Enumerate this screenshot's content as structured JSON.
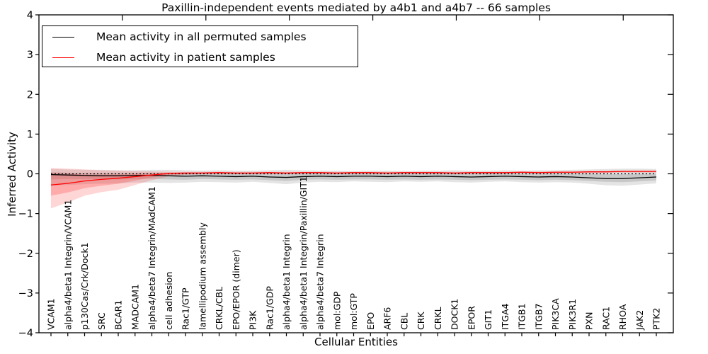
{
  "title": "Paxillin-independent events mediated by a4b1 and a4b7 -- 66 samples",
  "legend": {
    "items": [
      {
        "label": "Mean activity in all permuted samples",
        "color": "#000000"
      },
      {
        "label": "Mean activity in patient samples",
        "color": "#ff0000"
      }
    ]
  },
  "axes": {
    "xlabel": "Cellular Entities",
    "ylabel": "Inferred Activity",
    "ylim": [
      -4,
      4
    ],
    "ytick_values": [
      4,
      3,
      2,
      1,
      0,
      -1,
      -2,
      -3,
      -4
    ],
    "ytick_labels": [
      "4",
      "3",
      "2",
      "1",
      "0",
      "−1",
      "−2",
      "−3",
      "−4"
    ],
    "grid": false
  },
  "chart_data": {
    "type": "line",
    "title": "Paxillin-independent events mediated by a4b1 and a4b7 -- 66 samples",
    "xlabel": "Cellular Entities",
    "ylabel": "Inferred Activity",
    "ylim": [
      -4,
      4
    ],
    "legend_position": "upper left",
    "categories": [
      "VCAM1",
      "alpha4/beta1 Integrin/VCAM1",
      "p130Cas/Crk/Dock1",
      "SRC",
      "BCAR1",
      "MADCAM1",
      "alpha4/beta7 Integrin/MAdCAM1",
      "cell adhesion",
      "Rac1/GTP",
      "lamellipodium assembly",
      "CRKL/CBL",
      "EPO/EPOR (dimer)",
      "PI3K",
      "Rac1/GDP",
      "alpha4/beta1 Integrin",
      "alpha4/beta1 Integrin/Paxillin/GIT1",
      "alpha4/beta7 Integrin",
      "mol:GDP",
      "mol:GTP",
      "EPO",
      "ARF6",
      "CBL",
      "CRK",
      "CRKL",
      "DOCK1",
      "EPOR",
      "GIT1",
      "ITGA4",
      "ITGB1",
      "ITGB7",
      "PIK3CA",
      "PIK3R1",
      "PXN",
      "RAC1",
      "RHOA",
      "JAK2",
      "PTK2"
    ],
    "zero_reference_line": 0,
    "series": [
      {
        "name": "Mean activity in all permuted samples",
        "color": "#000000",
        "style": "solid",
        "values": [
          -0.02,
          -0.03,
          -0.04,
          -0.05,
          -0.05,
          -0.04,
          -0.04,
          -0.05,
          -0.06,
          -0.05,
          -0.06,
          -0.07,
          -0.06,
          -0.08,
          -0.09,
          -0.07,
          -0.06,
          -0.07,
          -0.06,
          -0.06,
          -0.07,
          -0.06,
          -0.07,
          -0.06,
          -0.07,
          -0.08,
          -0.07,
          -0.06,
          -0.07,
          -0.08,
          -0.07,
          -0.08,
          -0.1,
          -0.12,
          -0.12,
          -0.1,
          -0.08
        ]
      },
      {
        "name": "Mean activity in patient samples",
        "color": "#ff0000",
        "style": "solid",
        "values": [
          -0.28,
          -0.24,
          -0.18,
          -0.14,
          -0.11,
          -0.07,
          -0.03,
          0.01,
          0.02,
          0.02,
          0.03,
          0.02,
          0.02,
          0.03,
          0.02,
          0.03,
          0.03,
          0.02,
          0.03,
          0.03,
          0.02,
          0.03,
          0.03,
          0.03,
          0.02,
          0.03,
          0.03,
          0.03,
          0.04,
          0.03,
          0.04,
          0.04,
          0.05,
          0.05,
          0.06,
          0.06,
          0.06
        ]
      }
    ],
    "bands": [
      {
        "name": "permuted-outer-band",
        "fill": "rgba(130,130,130,0.22)",
        "upper": [
          0.12,
          0.11,
          0.1,
          0.1,
          0.09,
          0.09,
          0.1,
          0.1,
          0.09,
          0.08,
          0.09,
          0.08,
          0.08,
          0.09,
          0.1,
          0.09,
          0.08,
          0.08,
          0.07,
          0.08,
          0.08,
          0.07,
          0.08,
          0.08,
          0.09,
          0.08,
          0.08,
          0.09,
          0.08,
          0.09,
          0.09,
          0.1,
          0.11,
          0.12,
          0.13,
          0.13,
          0.12
        ],
        "lower": [
          -0.3,
          -0.28,
          -0.26,
          -0.25,
          -0.24,
          -0.22,
          -0.22,
          -0.23,
          -0.22,
          -0.2,
          -0.21,
          -0.22,
          -0.2,
          -0.23,
          -0.26,
          -0.22,
          -0.2,
          -0.21,
          -0.19,
          -0.2,
          -0.21,
          -0.19,
          -0.2,
          -0.19,
          -0.21,
          -0.22,
          -0.2,
          -0.19,
          -0.21,
          -0.22,
          -0.21,
          -0.22,
          -0.25,
          -0.29,
          -0.3,
          -0.27,
          -0.24
        ]
      },
      {
        "name": "permuted-inner-band",
        "fill": "rgba(130,130,130,0.28)",
        "upper": [
          0.04,
          0.03,
          0.02,
          0.02,
          0.02,
          0.02,
          0.03,
          0.02,
          0.02,
          0.02,
          0.02,
          0.01,
          0.02,
          0.01,
          0.01,
          0.02,
          0.02,
          0.01,
          0.02,
          0.02,
          0.01,
          0.02,
          0.01,
          0.02,
          0.01,
          0.01,
          0.02,
          0.02,
          0.01,
          0.01,
          0.02,
          0.01,
          0.0,
          -0.01,
          -0.01,
          0.0,
          0.01
        ],
        "lower": [
          -0.14,
          -0.13,
          -0.13,
          -0.14,
          -0.14,
          -0.13,
          -0.13,
          -0.14,
          -0.15,
          -0.13,
          -0.14,
          -0.15,
          -0.14,
          -0.16,
          -0.18,
          -0.15,
          -0.14,
          -0.15,
          -0.14,
          -0.14,
          -0.15,
          -0.14,
          -0.15,
          -0.14,
          -0.15,
          -0.16,
          -0.15,
          -0.14,
          -0.15,
          -0.16,
          -0.15,
          -0.16,
          -0.18,
          -0.2,
          -0.21,
          -0.19,
          -0.17
        ]
      },
      {
        "name": "patient-outer-band",
        "fill": "rgba(255,50,50,0.20)",
        "upper": [
          0.15,
          0.13,
          0.11,
          0.09,
          0.08,
          0.07,
          0.06,
          0.05,
          0.05,
          0.05,
          0.05,
          0.05,
          0.05,
          0.05,
          0.05,
          0.05,
          0.05,
          0.05,
          0.05,
          0.05,
          0.05,
          0.05,
          0.05,
          0.05,
          0.05,
          0.05,
          0.05,
          0.05,
          0.06,
          0.06,
          0.06,
          0.06,
          0.07,
          0.07,
          0.08,
          0.08,
          0.08
        ],
        "lower": [
          -0.87,
          -0.72,
          -0.55,
          -0.46,
          -0.4,
          -0.28,
          -0.16,
          -0.06,
          -0.02,
          -0.01,
          -0.01,
          -0.01,
          -0.01,
          -0.01,
          -0.01,
          0.0,
          0.0,
          -0.01,
          0.0,
          0.0,
          -0.01,
          0.0,
          0.0,
          0.0,
          -0.01,
          0.0,
          0.0,
          0.0,
          0.01,
          0.01,
          0.01,
          0.01,
          0.02,
          0.02,
          0.03,
          0.03,
          0.03
        ]
      },
      {
        "name": "patient-inner-band",
        "fill": "rgba(255,50,50,0.26)",
        "upper": [
          0.02,
          0.0,
          -0.02,
          -0.02,
          -0.02,
          -0.01,
          0.0,
          0.02,
          0.03,
          0.03,
          0.04,
          0.03,
          0.03,
          0.04,
          0.03,
          0.04,
          0.04,
          0.03,
          0.04,
          0.04,
          0.03,
          0.04,
          0.04,
          0.04,
          0.03,
          0.04,
          0.04,
          0.04,
          0.05,
          0.04,
          0.05,
          0.05,
          0.06,
          0.06,
          0.07,
          0.07,
          0.07
        ],
        "lower": [
          -0.55,
          -0.47,
          -0.36,
          -0.3,
          -0.25,
          -0.17,
          -0.09,
          -0.02,
          0.0,
          0.01,
          0.01,
          0.01,
          0.01,
          0.01,
          0.01,
          0.02,
          0.02,
          0.01,
          0.02,
          0.02,
          0.01,
          0.02,
          0.02,
          0.02,
          0.01,
          0.02,
          0.02,
          0.02,
          0.03,
          0.02,
          0.03,
          0.03,
          0.04,
          0.04,
          0.05,
          0.05,
          0.05
        ]
      }
    ]
  }
}
